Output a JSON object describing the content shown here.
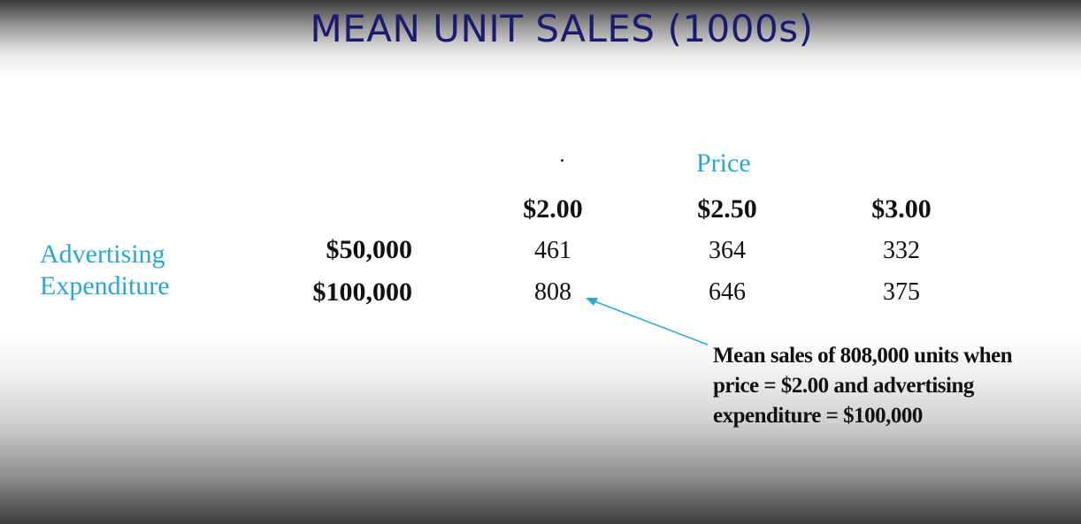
{
  "title": "MEAN UNIT SALES (1000s)",
  "table": {
    "column_group_label": "Price",
    "columns": [
      "$2.00",
      "$2.50",
      "$3.00"
    ],
    "row_group_label_line1": "Advertising",
    "row_group_label_line2": "Expenditure",
    "rows": [
      {
        "label": "$50,000",
        "values": [
          "461",
          "364",
          "332"
        ]
      },
      {
        "label": "$100,000",
        "values": [
          "808",
          "646",
          "375"
        ]
      }
    ]
  },
  "annotation": {
    "line1": "Mean sales of 808,000 units when",
    "line2": "price = $2.00 and advertising",
    "line3": "expenditure = $100,000"
  },
  "colors": {
    "title": "#1a1a6e",
    "group_label": "#2aa6d6",
    "arrow": "#2aa6d6"
  }
}
